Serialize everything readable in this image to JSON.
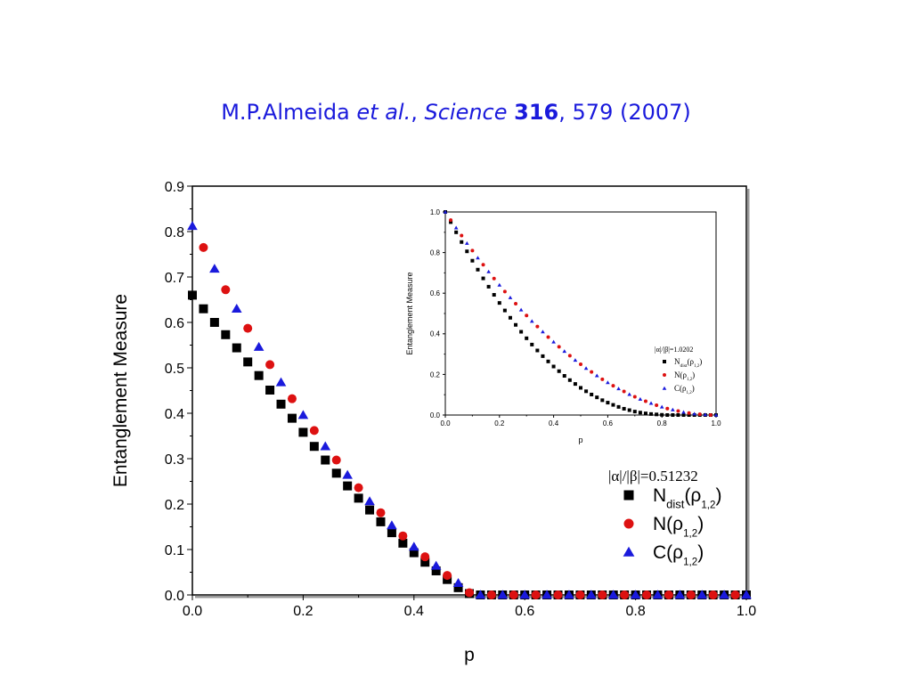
{
  "citation": {
    "authors": "M.P.Almeida ",
    "etal": "et al.",
    "sep": ", ",
    "journal": "Science",
    "volume": "316",
    "rest": ", 579 (2007)"
  },
  "colors": {
    "black": "#000000",
    "red": "#dd1111",
    "blue": "#1a1adc",
    "citation": "#1a1adc"
  },
  "chart_data": [
    {
      "type": "scatter",
      "xlabel": "p",
      "ylabel": "Entanglement Measure",
      "xlim": [
        0.0,
        1.0
      ],
      "ylim": [
        0.0,
        0.9
      ],
      "xticks": [
        "0.0",
        "0.2",
        "0.4",
        "0.6",
        "0.8",
        "1.0"
      ],
      "yticks": [
        "0.0",
        "0.1",
        "0.2",
        "0.3",
        "0.4",
        "0.5",
        "0.6",
        "0.7",
        "0.8",
        "0.9"
      ],
      "legend_title": "|α|/|β|=0.51232",
      "legend_position": "bottom-right",
      "series": [
        {
          "name": "N_dist(ρ_1,2)",
          "label_main": "N",
          "label_sub1": "dist",
          "label_open": "(ρ",
          "label_sub2": "1,2",
          "label_close": ")",
          "marker": "square",
          "color": "#000000",
          "x": [
            0.0,
            0.02,
            0.04,
            0.06,
            0.08,
            0.1,
            0.12,
            0.14,
            0.16,
            0.18,
            0.2,
            0.22,
            0.24,
            0.26,
            0.28,
            0.3,
            0.32,
            0.34,
            0.36,
            0.38,
            0.4,
            0.42,
            0.44,
            0.46,
            0.48,
            0.5,
            0.52,
            0.54,
            0.56,
            0.58,
            0.6,
            0.62,
            0.64,
            0.66,
            0.68,
            0.7,
            0.72,
            0.74,
            0.76,
            0.78,
            0.8,
            0.82,
            0.84,
            0.86,
            0.88,
            0.9,
            0.92,
            0.94,
            0.96,
            0.98,
            1.0
          ],
          "y": [
            0.66,
            0.63,
            0.6,
            0.573,
            0.544,
            0.513,
            0.483,
            0.451,
            0.42,
            0.389,
            0.358,
            0.327,
            0.297,
            0.268,
            0.24,
            0.213,
            0.187,
            0.161,
            0.137,
            0.114,
            0.093,
            0.072,
            0.053,
            0.034,
            0.016,
            0.003,
            0,
            0,
            0,
            0,
            0,
            0,
            0,
            0,
            0,
            0,
            0,
            0,
            0,
            0,
            0,
            0,
            0,
            0,
            0,
            0,
            0,
            0,
            0,
            0,
            0
          ]
        },
        {
          "name": "N(ρ_1,2)",
          "label_main": "N",
          "label_sub1": "",
          "label_open": "(ρ",
          "label_sub2": "1,2",
          "label_close": ")",
          "marker": "circle",
          "color": "#dd1111",
          "x": [
            0.02,
            0.06,
            0.1,
            0.14,
            0.18,
            0.22,
            0.26,
            0.3,
            0.34,
            0.38,
            0.42,
            0.46,
            0.5,
            0.54,
            0.58,
            0.62,
            0.66,
            0.7,
            0.74,
            0.78,
            0.82,
            0.86,
            0.9,
            0.94,
            0.98
          ],
          "y": [
            0.765,
            0.672,
            0.587,
            0.507,
            0.432,
            0.362,
            0.297,
            0.236,
            0.181,
            0.13,
            0.084,
            0.043,
            0.005,
            0,
            0,
            0,
            0,
            0,
            0,
            0,
            0,
            0,
            0,
            0,
            0
          ]
        },
        {
          "name": "C(ρ_1,2)",
          "label_main": "C",
          "label_sub1": "",
          "label_open": "(ρ",
          "label_sub2": "1,2",
          "label_close": ")",
          "marker": "triangle",
          "color": "#1a1adc",
          "x": [
            0.0,
            0.04,
            0.08,
            0.12,
            0.16,
            0.2,
            0.24,
            0.28,
            0.32,
            0.36,
            0.4,
            0.44,
            0.48,
            0.52,
            0.56,
            0.6,
            0.64,
            0.68,
            0.72,
            0.76,
            0.8,
            0.84,
            0.88,
            0.92,
            0.96,
            1.0
          ],
          "y": [
            0.812,
            0.718,
            0.63,
            0.546,
            0.468,
            0.396,
            0.327,
            0.264,
            0.206,
            0.153,
            0.106,
            0.064,
            0.026,
            0,
            0,
            0,
            0,
            0,
            0,
            0,
            0,
            0,
            0,
            0,
            0,
            0
          ]
        }
      ]
    },
    {
      "type": "scatter",
      "inset": true,
      "xlabel": "p",
      "ylabel": "Entanglement Measure",
      "xlim": [
        0.0,
        1.0
      ],
      "ylim": [
        0.0,
        1.0
      ],
      "xticks": [
        "0.0",
        "0.2",
        "0.4",
        "0.6",
        "0.8",
        "1.0"
      ],
      "yticks": [
        "0.0",
        "0.2",
        "0.4",
        "0.6",
        "0.8",
        "1.0"
      ],
      "legend_title": "|α|/|β|=1.0202",
      "legend_position": "bottom-right",
      "series": [
        {
          "name": "N_dist(ρ_1,2)",
          "label_main": "N",
          "label_sub1": "dist",
          "label_open": "(ρ",
          "label_sub2": "1,2",
          "label_close": ")",
          "marker": "square",
          "color": "#000000",
          "x": [
            0.0,
            0.02,
            0.04,
            0.06,
            0.08,
            0.1,
            0.12,
            0.14,
            0.16,
            0.18,
            0.2,
            0.22,
            0.24,
            0.26,
            0.28,
            0.3,
            0.32,
            0.34,
            0.36,
            0.38,
            0.4,
            0.42,
            0.44,
            0.46,
            0.48,
            0.5,
            0.52,
            0.54,
            0.56,
            0.58,
            0.6,
            0.62,
            0.64,
            0.66,
            0.68,
            0.7,
            0.72,
            0.74,
            0.76,
            0.78,
            0.8,
            0.82,
            0.84,
            0.86,
            0.88,
            0.9,
            0.92,
            0.94,
            0.96,
            0.98,
            1.0
          ],
          "y": [
            1.0,
            0.95,
            0.9,
            0.852,
            0.806,
            0.76,
            0.716,
            0.673,
            0.632,
            0.592,
            0.552,
            0.515,
            0.479,
            0.444,
            0.41,
            0.378,
            0.347,
            0.318,
            0.29,
            0.264,
            0.239,
            0.216,
            0.193,
            0.172,
            0.153,
            0.134,
            0.117,
            0.101,
            0.087,
            0.073,
            0.061,
            0.05,
            0.04,
            0.031,
            0.024,
            0.017,
            0.012,
            0.008,
            0.005,
            0.003,
            0.001,
            0.0,
            0.0,
            0.0,
            0.0,
            0.0,
            0.0,
            0.0,
            0.0,
            0.0,
            0.0
          ]
        },
        {
          "name": "N(ρ_1,2)",
          "label_main": "N",
          "label_sub1": "",
          "label_open": "(ρ",
          "label_sub2": "1,2",
          "label_close": ")",
          "marker": "circle",
          "color": "#dd1111",
          "x": [
            0.02,
            0.06,
            0.1,
            0.14,
            0.18,
            0.22,
            0.26,
            0.3,
            0.34,
            0.38,
            0.42,
            0.46,
            0.5,
            0.54,
            0.58,
            0.62,
            0.66,
            0.7,
            0.74,
            0.78,
            0.82,
            0.86,
            0.9,
            0.94,
            0.98
          ],
          "y": [
            0.96,
            0.884,
            0.81,
            0.74,
            0.672,
            0.608,
            0.548,
            0.49,
            0.436,
            0.384,
            0.336,
            0.292,
            0.25,
            0.212,
            0.176,
            0.144,
            0.116,
            0.09,
            0.068,
            0.048,
            0.032,
            0.02,
            0.01,
            0.004,
            0.0
          ]
        },
        {
          "name": "C(ρ_1,2)",
          "label_main": "C",
          "label_sub1": "",
          "label_open": "(ρ",
          "label_sub2": "1,2",
          "label_close": ")",
          "marker": "triangle",
          "color": "#1a1adc",
          "x": [
            0.0,
            0.04,
            0.08,
            0.12,
            0.16,
            0.2,
            0.24,
            0.28,
            0.32,
            0.36,
            0.4,
            0.44,
            0.48,
            0.52,
            0.56,
            0.6,
            0.64,
            0.68,
            0.72,
            0.76,
            0.8,
            0.84,
            0.88,
            0.92,
            0.96,
            1.0
          ],
          "y": [
            1.0,
            0.922,
            0.846,
            0.774,
            0.706,
            0.64,
            0.578,
            0.518,
            0.462,
            0.41,
            0.36,
            0.314,
            0.27,
            0.23,
            0.194,
            0.16,
            0.13,
            0.102,
            0.078,
            0.058,
            0.04,
            0.026,
            0.014,
            0.006,
            0.002,
            0.0
          ]
        }
      ]
    }
  ]
}
